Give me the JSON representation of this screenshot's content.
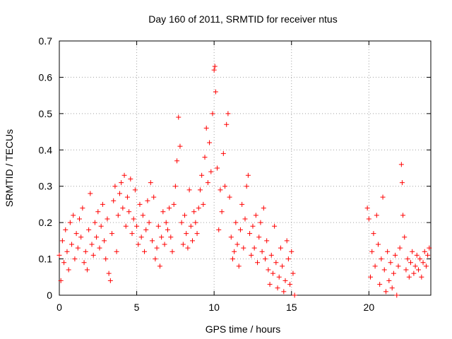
{
  "chart_data": {
    "type": "scatter",
    "title": "Day 160 of 2011, SRMTID for receiver ntus",
    "xlabel": "GPS time / hours",
    "ylabel": "SRMTID / TECUs",
    "xlim": [
      0,
      24
    ],
    "ylim": [
      0,
      0.7
    ],
    "x_ticks": [
      0,
      5,
      10,
      15,
      20
    ],
    "x_tick_labels": [
      "0",
      "5",
      "10",
      "15",
      "20"
    ],
    "y_ticks": [
      0,
      0.1,
      0.2,
      0.3,
      0.4,
      0.5,
      0.6,
      0.7
    ],
    "y_tick_labels": [
      "0",
      "0.1",
      "0.2",
      "0.3",
      "0.4",
      "0.5",
      "0.6",
      "0.7"
    ],
    "grid": true,
    "marker": "+",
    "color": "#ff0000",
    "series": [
      {
        "name": "SRMTID",
        "points": [
          [
            0.0,
            0.11
          ],
          [
            0.1,
            0.04
          ],
          [
            0.2,
            0.15
          ],
          [
            0.3,
            0.09
          ],
          [
            0.4,
            0.18
          ],
          [
            0.5,
            0.12
          ],
          [
            0.6,
            0.07
          ],
          [
            0.7,
            0.2
          ],
          [
            0.8,
            0.14
          ],
          [
            0.9,
            0.22
          ],
          [
            1.0,
            0.1
          ],
          [
            1.1,
            0.17
          ],
          [
            1.2,
            0.13
          ],
          [
            1.3,
            0.21
          ],
          [
            1.4,
            0.16
          ],
          [
            1.5,
            0.24
          ],
          [
            1.6,
            0.09
          ],
          [
            1.7,
            0.12
          ],
          [
            1.8,
            0.07
          ],
          [
            1.9,
            0.18
          ],
          [
            2.0,
            0.28
          ],
          [
            2.1,
            0.14
          ],
          [
            2.2,
            0.11
          ],
          [
            2.3,
            0.2
          ],
          [
            2.4,
            0.16
          ],
          [
            2.5,
            0.23
          ],
          [
            2.6,
            0.13
          ],
          [
            2.7,
            0.19
          ],
          [
            2.8,
            0.25
          ],
          [
            2.9,
            0.15
          ],
          [
            3.0,
            0.1
          ],
          [
            3.1,
            0.21
          ],
          [
            3.2,
            0.06
          ],
          [
            3.3,
            0.04
          ],
          [
            3.4,
            0.17
          ],
          [
            3.5,
            0.26
          ],
          [
            3.6,
            0.3
          ],
          [
            3.7,
            0.12
          ],
          [
            3.8,
            0.22
          ],
          [
            3.9,
            0.28
          ],
          [
            4.0,
            0.31
          ],
          [
            4.1,
            0.24
          ],
          [
            4.2,
            0.33
          ],
          [
            4.3,
            0.19
          ],
          [
            4.4,
            0.27
          ],
          [
            4.5,
            0.23
          ],
          [
            4.6,
            0.32
          ],
          [
            4.7,
            0.17
          ],
          [
            4.8,
            0.21
          ],
          [
            4.9,
            0.29
          ],
          [
            5.0,
            0.19
          ],
          [
            5.1,
            0.14
          ],
          [
            5.2,
            0.25
          ],
          [
            5.3,
            0.16
          ],
          [
            5.4,
            0.22
          ],
          [
            5.5,
            0.12
          ],
          [
            5.6,
            0.18
          ],
          [
            5.7,
            0.26
          ],
          [
            5.8,
            0.2
          ],
          [
            5.9,
            0.31
          ],
          [
            6.0,
            0.15
          ],
          [
            6.1,
            0.27
          ],
          [
            6.2,
            0.1
          ],
          [
            6.3,
            0.13
          ],
          [
            6.4,
            0.19
          ],
          [
            6.5,
            0.08
          ],
          [
            6.6,
            0.16
          ],
          [
            6.7,
            0.23
          ],
          [
            6.8,
            0.14
          ],
          [
            6.9,
            0.2
          ],
          [
            7.0,
            0.18
          ],
          [
            7.1,
            0.24
          ],
          [
            7.2,
            0.16
          ],
          [
            7.3,
            0.12
          ],
          [
            7.4,
            0.25
          ],
          [
            7.5,
            0.3
          ],
          [
            7.6,
            0.37
          ],
          [
            7.7,
            0.49
          ],
          [
            7.8,
            0.41
          ],
          [
            7.9,
            0.2
          ],
          [
            8.0,
            0.14
          ],
          [
            8.1,
            0.22
          ],
          [
            8.2,
            0.17
          ],
          [
            8.3,
            0.13
          ],
          [
            8.4,
            0.29
          ],
          [
            8.5,
            0.19
          ],
          [
            8.6,
            0.15
          ],
          [
            8.7,
            0.23
          ],
          [
            8.8,
            0.2
          ],
          [
            8.9,
            0.17
          ],
          [
            9.0,
            0.24
          ],
          [
            9.1,
            0.29
          ],
          [
            9.2,
            0.33
          ],
          [
            9.3,
            0.25
          ],
          [
            9.4,
            0.38
          ],
          [
            9.5,
            0.46
          ],
          [
            9.6,
            0.31
          ],
          [
            9.7,
            0.42
          ],
          [
            9.8,
            0.34
          ],
          [
            9.9,
            0.5
          ],
          [
            10.0,
            0.62
          ],
          [
            10.05,
            0.63
          ],
          [
            10.1,
            0.56
          ],
          [
            10.2,
            0.35
          ],
          [
            10.3,
            0.18
          ],
          [
            10.4,
            0.29
          ],
          [
            10.5,
            0.23
          ],
          [
            10.6,
            0.39
          ],
          [
            10.7,
            0.3
          ],
          [
            10.8,
            0.47
          ],
          [
            10.9,
            0.5
          ],
          [
            11.0,
            0.27
          ],
          [
            11.1,
            0.16
          ],
          [
            11.2,
            0.1
          ],
          [
            11.3,
            0.12
          ],
          [
            11.4,
            0.2
          ],
          [
            11.5,
            0.14
          ],
          [
            11.6,
            0.08
          ],
          [
            11.7,
            0.18
          ],
          [
            11.8,
            0.25
          ],
          [
            11.9,
            0.13
          ],
          [
            12.0,
            0.21
          ],
          [
            12.1,
            0.3
          ],
          [
            12.2,
            0.33
          ],
          [
            12.3,
            0.17
          ],
          [
            12.4,
            0.11
          ],
          [
            12.5,
            0.19
          ],
          [
            12.6,
            0.13
          ],
          [
            12.7,
            0.22
          ],
          [
            12.8,
            0.09
          ],
          [
            12.9,
            0.16
          ],
          [
            13.0,
            0.2
          ],
          [
            13.1,
            0.12
          ],
          [
            13.2,
            0.24
          ],
          [
            13.3,
            0.1
          ],
          [
            13.4,
            0.15
          ],
          [
            13.5,
            0.07
          ],
          [
            13.6,
            0.03
          ],
          [
            13.7,
            0.11
          ],
          [
            13.8,
            0.06
          ],
          [
            13.9,
            0.19
          ],
          [
            14.0,
            0.09
          ],
          [
            14.1,
            0.02
          ],
          [
            14.2,
            0.05
          ],
          [
            14.3,
            0.13
          ],
          [
            14.4,
            0.08
          ],
          [
            14.5,
            0.01
          ],
          [
            14.6,
            0.04
          ],
          [
            14.7,
            0.15
          ],
          [
            14.8,
            0.1
          ],
          [
            14.9,
            0.03
          ],
          [
            15.0,
            0.12
          ],
          [
            15.1,
            0.06
          ],
          [
            15.2,
            0.0
          ],
          [
            19.9,
            0.24
          ],
          [
            20.0,
            0.21
          ],
          [
            20.1,
            0.05
          ],
          [
            20.2,
            0.12
          ],
          [
            20.3,
            0.17
          ],
          [
            20.4,
            0.08
          ],
          [
            20.5,
            0.22
          ],
          [
            20.6,
            0.14
          ],
          [
            20.7,
            0.03
          ],
          [
            20.8,
            0.1
          ],
          [
            20.9,
            0.27
          ],
          [
            21.0,
            0.07
          ],
          [
            21.1,
            0.01
          ],
          [
            21.2,
            0.12
          ],
          [
            21.3,
            0.04
          ],
          [
            21.4,
            0.09
          ],
          [
            21.5,
            0.02
          ],
          [
            21.6,
            0.06
          ],
          [
            21.7,
            0.11
          ],
          [
            21.8,
            0.0
          ],
          [
            21.9,
            0.08
          ],
          [
            22.0,
            0.13
          ],
          [
            22.1,
            0.36
          ],
          [
            22.15,
            0.31
          ],
          [
            22.2,
            0.22
          ],
          [
            22.3,
            0.16
          ],
          [
            22.4,
            0.07
          ],
          [
            22.5,
            0.1
          ],
          [
            22.6,
            0.05
          ],
          [
            22.7,
            0.09
          ],
          [
            22.8,
            0.12
          ],
          [
            22.9,
            0.06
          ],
          [
            23.0,
            0.08
          ],
          [
            23.1,
            0.11
          ],
          [
            23.2,
            0.07
          ],
          [
            23.3,
            0.1
          ],
          [
            23.4,
            0.05
          ],
          [
            23.5,
            0.09
          ],
          [
            23.6,
            0.12
          ],
          [
            23.7,
            0.08
          ],
          [
            23.8,
            0.11
          ],
          [
            23.9,
            0.13
          ]
        ]
      }
    ]
  }
}
